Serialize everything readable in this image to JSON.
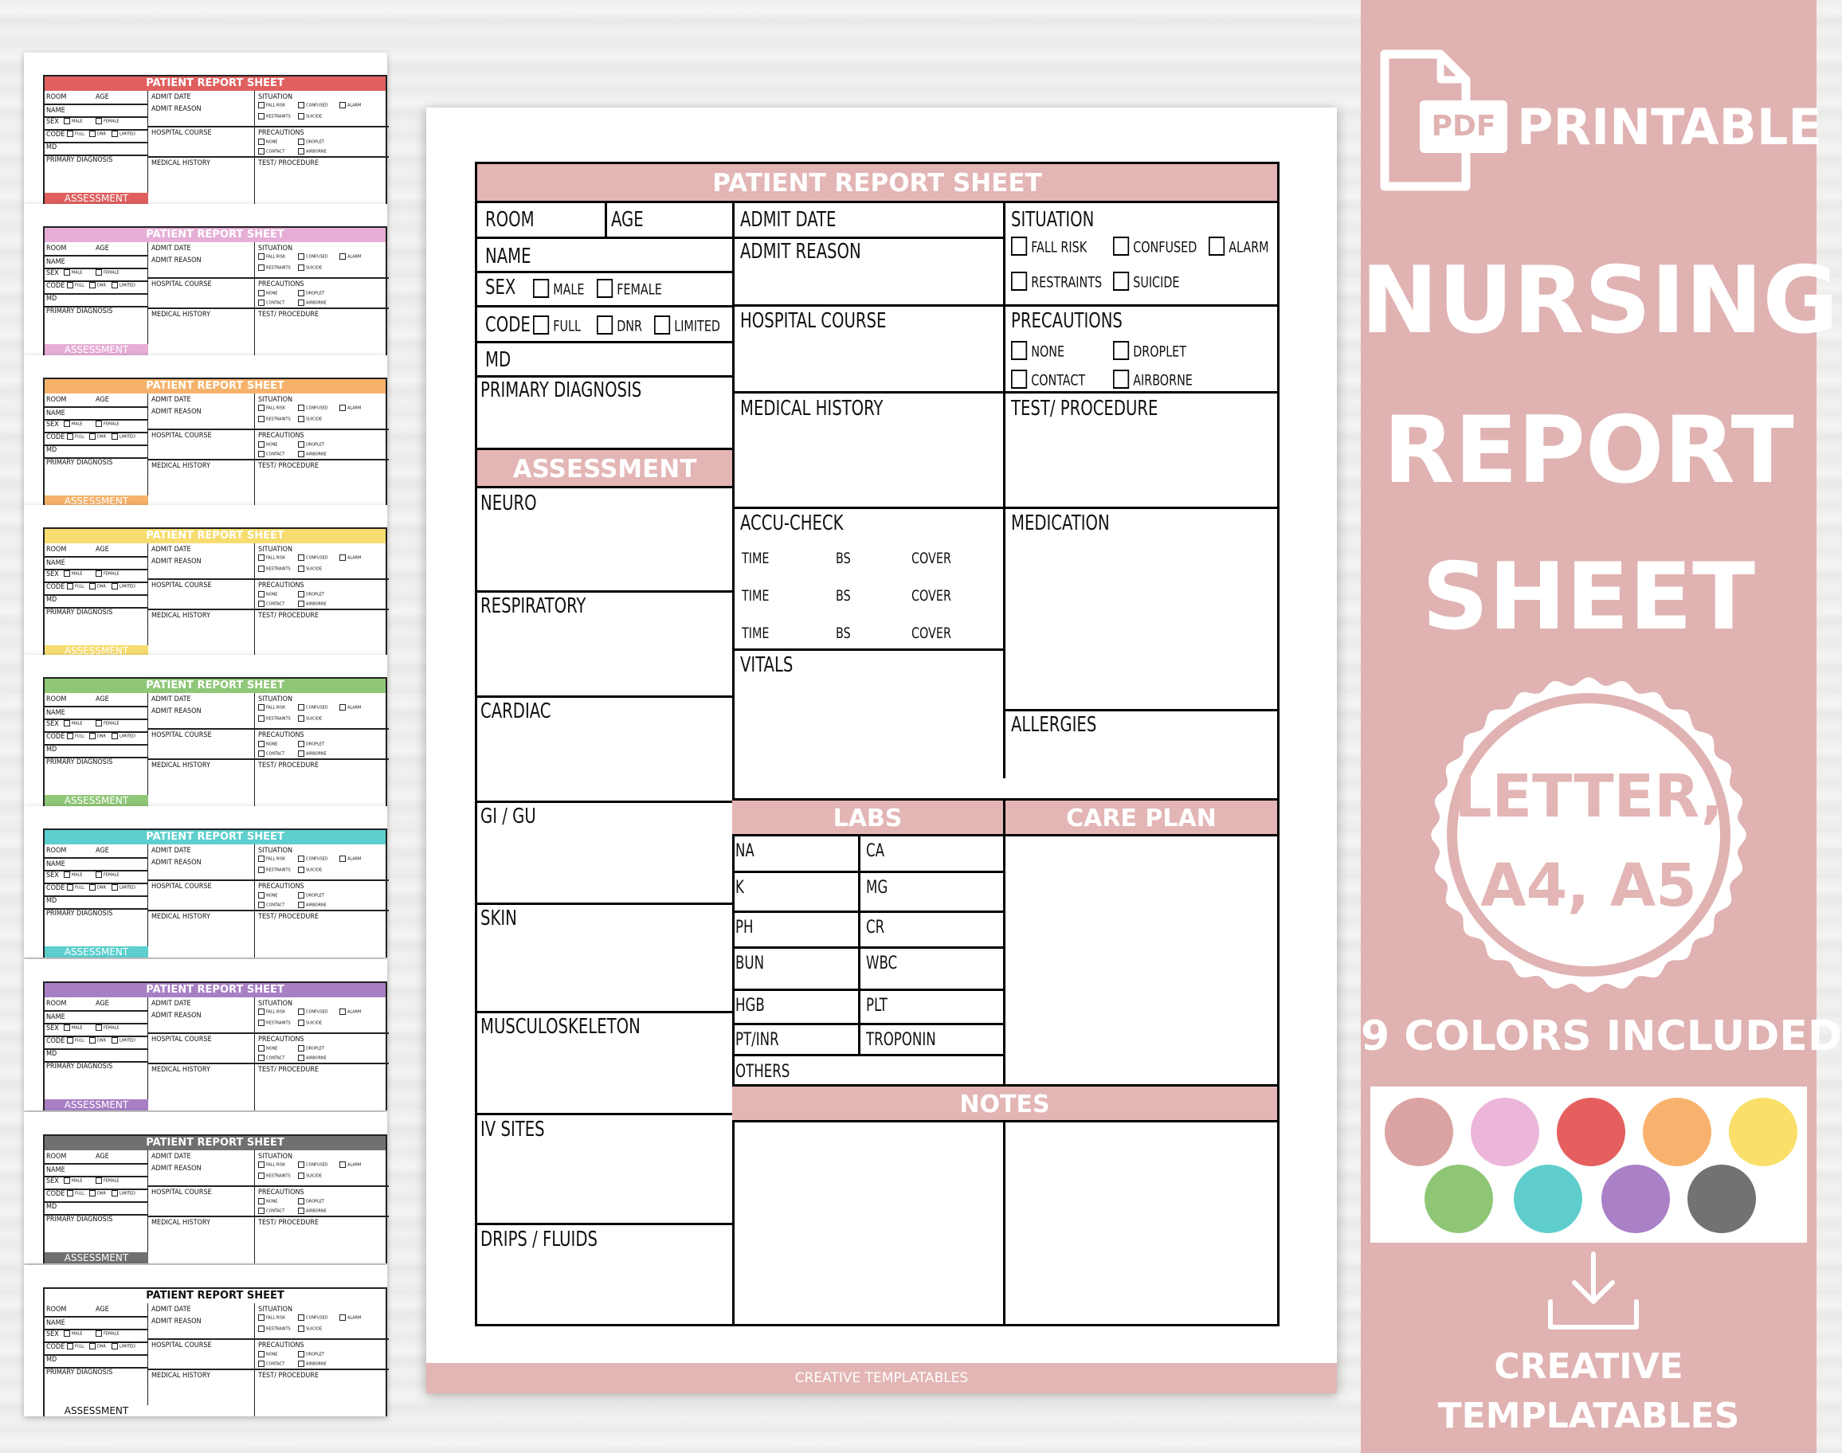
{
  "thumbnails": {
    "title": "PATIENT REPORT SHEET",
    "room": "ROOM",
    "age": "AGE",
    "name": "NAME",
    "sex": "SEX",
    "male": "MALE",
    "female": "FEMALE",
    "code": "CODE",
    "full": "FULL",
    "dnr": "DNR",
    "limited": "LIMITED",
    "md": "MD",
    "primary_diagnosis": "PRIMARY DIAGNOSIS",
    "admit_date": "ADMIT DATE",
    "admit_reason": "ADMIT REASON",
    "hospital_course": "HOSPITAL COURSE",
    "medical_history": "MEDICAL HISTORY",
    "situation": "SITUATION",
    "fall_risk": "FALL RISK",
    "confused": "CONFUSED",
    "alarm": "ALARM",
    "restraints": "RESTRAINTS",
    "suicide": "SUICIDE",
    "precautions": "PRECAUTIONS",
    "none": "NONE",
    "droplet": "DROPLET",
    "contact": "CONTACT",
    "airborne": "AIRBORNE",
    "test_procedure": "TEST/ PROCEDURE",
    "assessment": "ASSESSMENT",
    "colors": [
      "#e05f5f",
      "#e6aed6",
      "#f6b26b",
      "#f7dc6f",
      "#8fc777",
      "#5ccfce",
      "#a87fc5",
      "#707070",
      "#ffffff"
    ]
  },
  "sheet": {
    "title": "PATIENT REPORT SHEET",
    "accent": "#e3b5b5",
    "room": "ROOM",
    "age": "AGE",
    "name": "NAME",
    "sex": "SEX",
    "male": "MALE",
    "female": "FEMALE",
    "code": "CODE",
    "full": "FULL",
    "dnr": "DNR",
    "limited": "LIMITED",
    "md": "MD",
    "primary_diagnosis": "PRIMARY DIAGNOSIS",
    "assessment": "ASSESSMENT",
    "neuro": "NEURO",
    "respiratory": "RESPIRATORY",
    "cardiac": "CARDIAC",
    "gi_gu": "GI / GU",
    "skin": "SKIN",
    "musculoskeleton": "MUSCULOSKELETON",
    "iv_sites": "IV SITES",
    "drips_fluids": "DRIPS / FLUIDS",
    "admit_date": "ADMIT DATE",
    "admit_reason": "ADMIT REASON",
    "hospital_course": "HOSPITAL COURSE",
    "medical_history": "MEDICAL HISTORY",
    "accu_check": "ACCU-CHECK",
    "time": "TIME",
    "bs": "BS",
    "cover": "COVER",
    "vitals": "VITALS",
    "situation": "SITUATION",
    "fall_risk": "FALL RISK",
    "confused": "CONFUSED",
    "alarm": "ALARM",
    "restraints": "RESTRAINTS",
    "suicide": "SUICIDE",
    "precautions": "PRECAUTIONS",
    "none": "NONE",
    "droplet": "DROPLET",
    "contact": "CONTACT",
    "airborne": "AIRBORNE",
    "test_procedure": "TEST/ PROCEDURE",
    "medication": "MEDICATION",
    "allergies": "ALLERGIES",
    "labs": "LABS",
    "care_plan": "CARE PLAN",
    "notes": "NOTES",
    "labs_items": [
      [
        "NA",
        "CA"
      ],
      [
        "K",
        "MG"
      ],
      [
        "PH",
        "CR"
      ],
      [
        "BUN",
        "WBC"
      ],
      [
        "HGB",
        "PLT"
      ],
      [
        "PT/INR",
        "TROPONIN"
      ]
    ],
    "others": "OTHERS",
    "footer": "CREATIVE TEMPLATABLES"
  },
  "panel": {
    "pdf": "PDF",
    "printable": "PRINTABLE",
    "title_1": "NURSING",
    "title_2": "REPORT",
    "title_3": "SHEET",
    "badge_1": "LETTER,",
    "badge_2": "A4, A5",
    "colors_included": "9 COLORS INCLUDED",
    "swatches": [
      "#dba3a3",
      "#ebb6d9",
      "#e55f5f",
      "#f9b26d",
      "#fadf6b",
      "#8ec676",
      "#60cdcd",
      "#aa80c7",
      "#727272"
    ],
    "brand_1": "CREATIVE",
    "brand_2": "TEMPLATABLES"
  }
}
